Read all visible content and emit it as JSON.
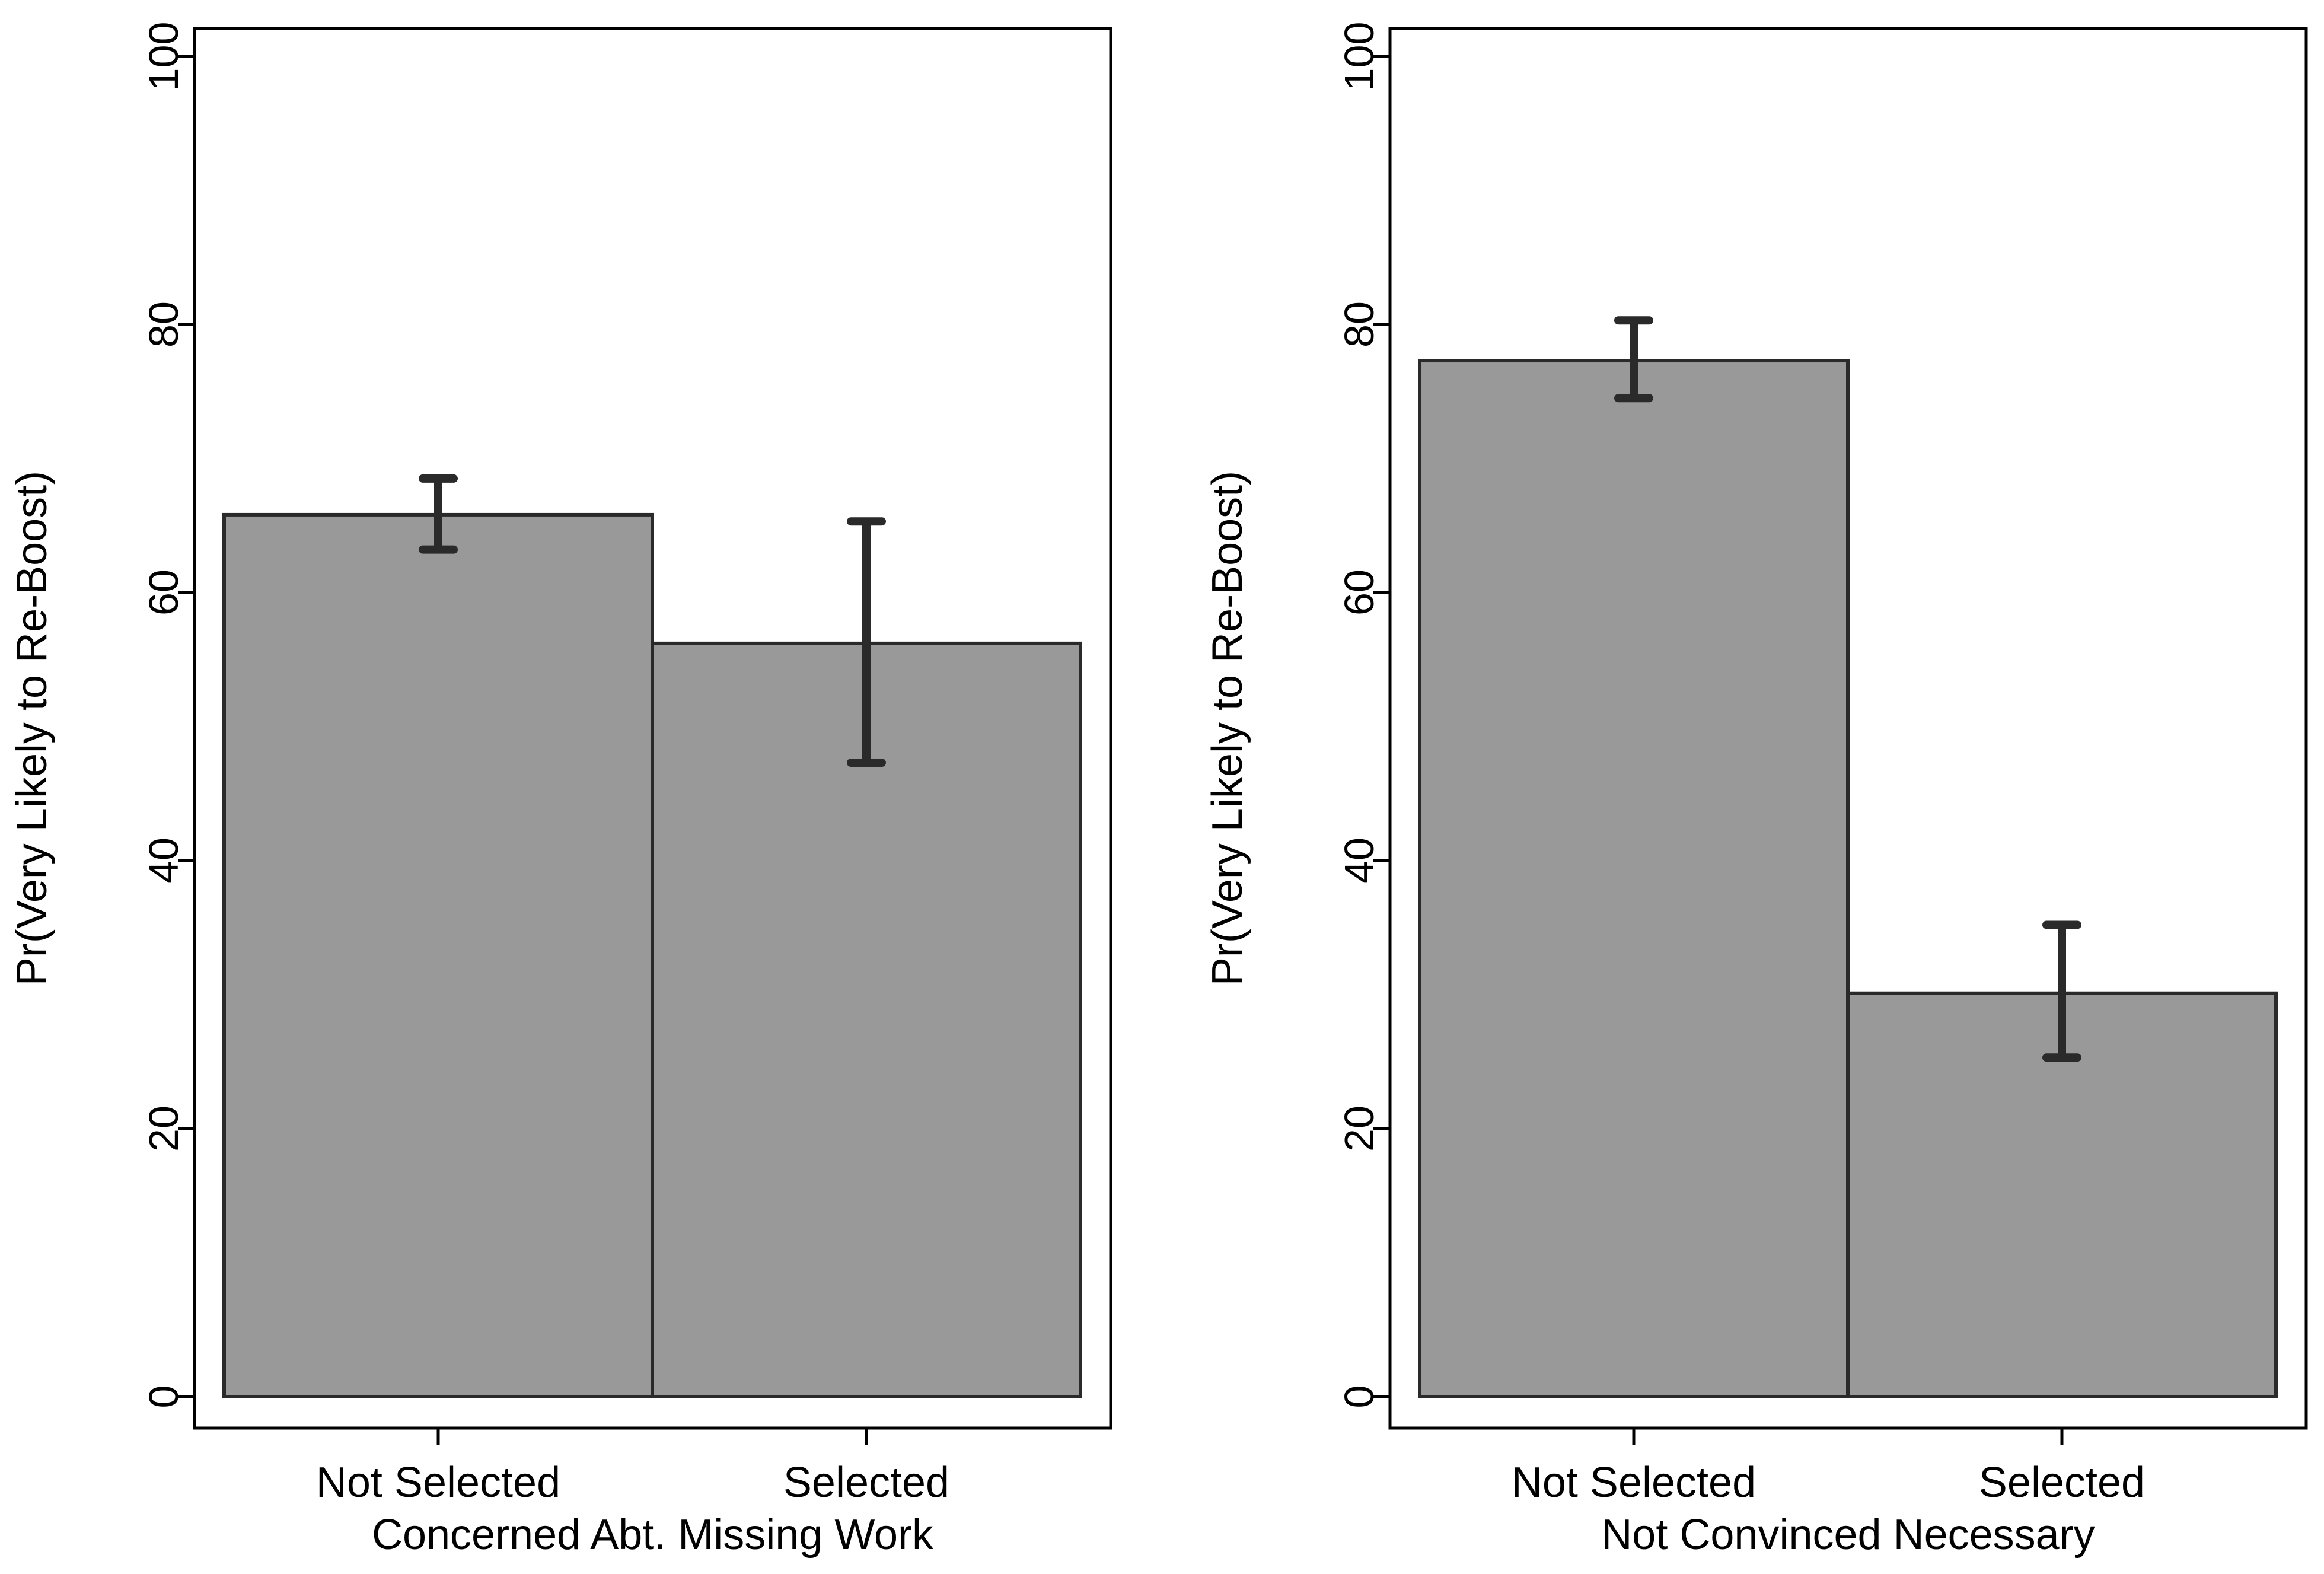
{
  "chart_data": [
    {
      "type": "bar",
      "xlabel": "Concerned Abt. Missing Work",
      "ylabel": "Pr(Very Likely to Re-Boost)",
      "categories": [
        "Not Selected",
        "Selected"
      ],
      "values": [
        65.8,
        56.2
      ],
      "error_low": [
        63.2,
        47.3
      ],
      "error_high": [
        68.5,
        65.3
      ],
      "ylim": [
        0,
        100
      ],
      "yticks": [
        0,
        20,
        40,
        60,
        80,
        100
      ],
      "ytick_labels": [
        "0",
        "20",
        "40",
        "60",
        "80",
        "100"
      ],
      "grid": false,
      "legend": "none"
    },
    {
      "type": "bar",
      "xlabel": "Not Convinced Necessary",
      "ylabel": "Pr(Very Likely to Re-Boost)",
      "categories": [
        "Not Selected",
        "Selected"
      ],
      "values": [
        77.3,
        30.1
      ],
      "error_low": [
        74.5,
        25.3
      ],
      "error_high": [
        80.3,
        35.2
      ],
      "ylim": [
        0,
        100
      ],
      "yticks": [
        0,
        20,
        40,
        60,
        80,
        100
      ],
      "ytick_labels": [
        "0",
        "20",
        "40",
        "60",
        "80",
        "100"
      ],
      "grid": false,
      "legend": "none"
    }
  ],
  "colors": {
    "bar_fill": "#999999",
    "bar_stroke": "#2a2a2a",
    "error_bar": "#2a2a2a",
    "axis": "#000000",
    "background": "#ffffff"
  }
}
